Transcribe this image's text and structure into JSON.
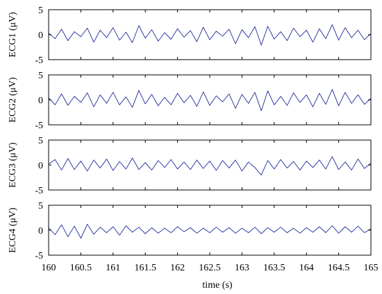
{
  "chart_data": {
    "type": "line",
    "xlabel": "time (s)",
    "x_ticks": [
      "160",
      "160.5",
      "161",
      "161.5",
      "162",
      "162.5",
      "163",
      "163.5",
      "164",
      "164.5",
      "165"
    ],
    "xlim": [
      160,
      165
    ],
    "ylim": [
      -5,
      5
    ],
    "y_ticks": [
      "5",
      "0",
      "-5"
    ],
    "grid": false,
    "legend": "none",
    "line_color": "#1f2a9a",
    "panels": [
      {
        "ylabel": "ECG1 (μV)",
        "series": {
          "x": [
            160.0,
            160.1,
            160.2,
            160.3,
            160.4,
            160.5,
            160.6,
            160.7,
            160.8,
            160.9,
            161.0,
            161.1,
            161.2,
            161.3,
            161.4,
            161.5,
            161.6,
            161.7,
            161.8,
            161.9,
            162.0,
            162.1,
            162.2,
            162.3,
            162.4,
            162.5,
            162.6,
            162.7,
            162.8,
            162.9,
            163.0,
            163.1,
            163.2,
            163.3,
            163.4,
            163.5,
            163.6,
            163.7,
            163.8,
            163.9,
            164.0,
            164.1,
            164.2,
            164.3,
            164.4,
            164.5,
            164.6,
            164.7,
            164.8,
            164.9,
            165.0
          ],
          "y": [
            0.3,
            -0.8,
            1.1,
            -1.2,
            0.6,
            -0.4,
            1.3,
            -1.5,
            0.9,
            -0.6,
            1.4,
            -1.1,
            0.5,
            -1.6,
            1.8,
            -0.7,
            1.0,
            -1.3,
            0.4,
            -0.9,
            1.2,
            -0.5,
            0.8,
            -1.4,
            1.5,
            -1.0,
            0.7,
            -0.3,
            1.1,
            -1.8,
            1.0,
            -0.6,
            1.6,
            -2.1,
            1.7,
            -0.9,
            0.6,
            -1.2,
            1.3,
            -0.4,
            0.9,
            -1.5,
            1.2,
            -0.8,
            2.0,
            -1.1,
            1.4,
            -0.6,
            0.9,
            -1.0,
            0.2
          ]
        }
      },
      {
        "ylabel": "ECG2 (μV)",
        "series": {
          "x": [
            160.0,
            160.1,
            160.2,
            160.3,
            160.4,
            160.5,
            160.6,
            160.7,
            160.8,
            160.9,
            161.0,
            161.1,
            161.2,
            161.3,
            161.4,
            161.5,
            161.6,
            161.7,
            161.8,
            161.9,
            162.0,
            162.1,
            162.2,
            162.3,
            162.4,
            162.5,
            162.6,
            162.7,
            162.8,
            162.9,
            163.0,
            163.1,
            163.2,
            163.3,
            163.4,
            163.5,
            163.6,
            163.7,
            163.8,
            163.9,
            164.0,
            164.1,
            164.2,
            164.3,
            164.4,
            164.5,
            164.6,
            164.7,
            164.8,
            164.9,
            165.0
          ],
          "y": [
            0.4,
            -1.0,
            1.2,
            -1.1,
            0.7,
            -0.5,
            1.4,
            -1.4,
            1.0,
            -0.7,
            1.5,
            -1.0,
            0.6,
            -1.5,
            1.9,
            -0.8,
            1.1,
            -1.2,
            0.5,
            -1.0,
            1.3,
            -0.6,
            0.9,
            -1.3,
            1.6,
            -1.1,
            0.8,
            -0.4,
            1.2,
            -1.7,
            1.1,
            -0.7,
            1.5,
            -2.2,
            1.8,
            -1.0,
            0.7,
            -1.1,
            1.4,
            -0.5,
            1.0,
            -1.4,
            1.3,
            -0.9,
            2.1,
            -1.2,
            1.5,
            -0.7,
            1.0,
            -0.9,
            0.3
          ]
        }
      },
      {
        "ylabel": "ECG3 (μV)",
        "series": {
          "x": [
            160.0,
            160.1,
            160.2,
            160.3,
            160.4,
            160.5,
            160.6,
            160.7,
            160.8,
            160.9,
            161.0,
            161.1,
            161.2,
            161.3,
            161.4,
            161.5,
            161.6,
            161.7,
            161.8,
            161.9,
            162.0,
            162.1,
            162.2,
            162.3,
            162.4,
            162.5,
            162.6,
            162.7,
            162.8,
            162.9,
            163.0,
            163.1,
            163.2,
            163.3,
            163.4,
            163.5,
            163.6,
            163.7,
            163.8,
            163.9,
            164.0,
            164.1,
            164.2,
            164.3,
            164.4,
            164.5,
            164.6,
            164.7,
            164.8,
            164.9,
            165.0
          ],
          "y": [
            0.2,
            1.1,
            -1.0,
            1.3,
            -0.9,
            0.8,
            -1.2,
            1.0,
            -0.6,
            1.2,
            -1.1,
            0.7,
            -0.8,
            1.4,
            -0.9,
            0.5,
            -1.0,
            0.9,
            -0.5,
            1.1,
            -0.8,
            0.6,
            -0.9,
            1.0,
            -0.7,
            0.8,
            -1.1,
            0.9,
            -0.6,
            1.0,
            -1.2,
            0.6,
            -0.5,
            -2.0,
            0.9,
            -0.8,
            1.1,
            -0.6,
            0.7,
            -1.0,
            0.8,
            -0.5,
            1.0,
            -0.8,
            1.7,
            -0.9,
            0.6,
            -1.0,
            1.2,
            -0.7,
            0.4
          ]
        }
      },
      {
        "ylabel": "ECG4 (μV)",
        "series": {
          "x": [
            160.0,
            160.1,
            160.2,
            160.3,
            160.4,
            160.5,
            160.6,
            160.7,
            160.8,
            160.9,
            161.0,
            161.1,
            161.2,
            161.3,
            161.4,
            161.5,
            161.6,
            161.7,
            161.8,
            161.9,
            162.0,
            162.1,
            162.2,
            162.3,
            162.4,
            162.5,
            162.6,
            162.7,
            162.8,
            162.9,
            163.0,
            163.1,
            163.2,
            163.3,
            163.4,
            163.5,
            163.6,
            163.7,
            163.8,
            163.9,
            164.0,
            164.1,
            164.2,
            164.3,
            164.4,
            164.5,
            164.6,
            164.7,
            164.8,
            164.9,
            165.0
          ],
          "y": [
            0.5,
            -0.9,
            1.1,
            -1.3,
            0.8,
            -1.6,
            1.2,
            -0.8,
            0.6,
            -0.5,
            0.7,
            -1.0,
            0.9,
            -0.4,
            0.6,
            -0.7,
            0.5,
            -0.6,
            0.4,
            -0.5,
            0.7,
            -0.3,
            0.5,
            -0.6,
            0.4,
            -0.5,
            0.6,
            -0.4,
            0.5,
            -0.6,
            0.4,
            -0.5,
            0.6,
            -0.7,
            0.5,
            -0.4,
            0.6,
            -0.5,
            0.4,
            -0.6,
            0.5,
            -0.4,
            0.7,
            -0.5,
            0.9,
            -0.6,
            0.7,
            -0.4,
            0.8,
            -0.5,
            0.3
          ]
        }
      }
    ]
  }
}
